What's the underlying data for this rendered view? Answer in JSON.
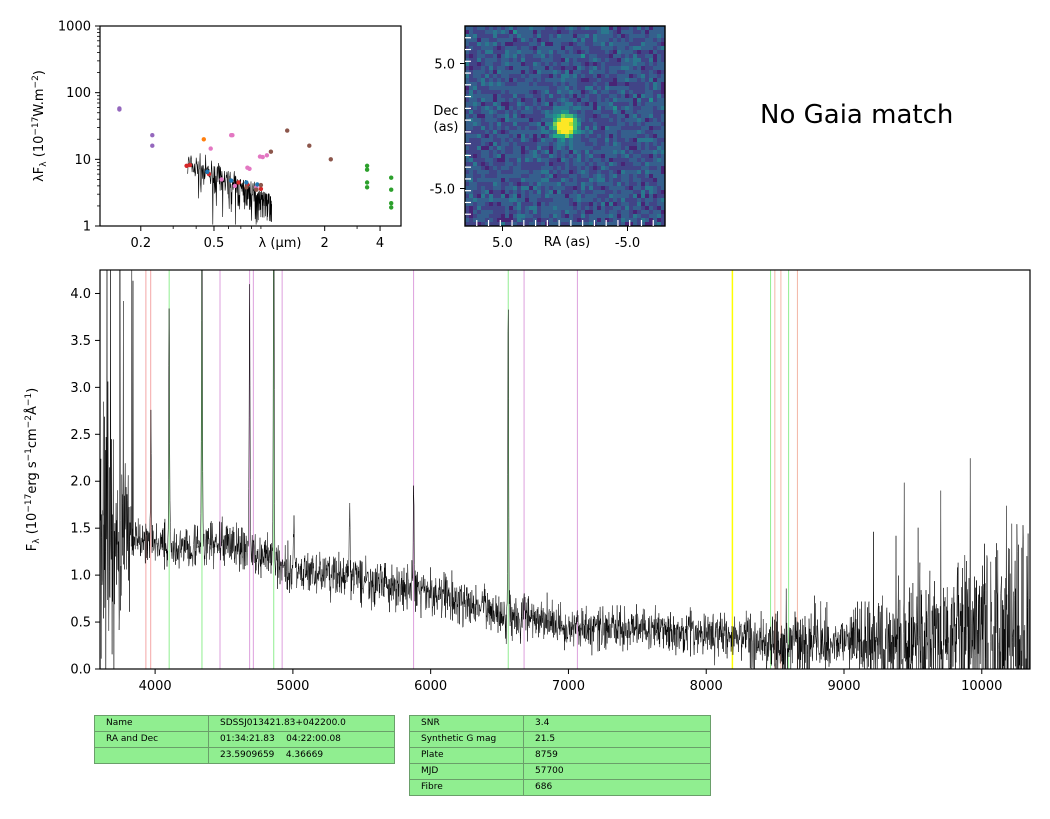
{
  "chart_data": [
    {
      "type": "scatter",
      "panel": "sed",
      "ylabel": "λF_λ (10^{-17}W.m^{-2})",
      "xlabel": "λ (μm)",
      "x_scale": "log",
      "y_scale": "log",
      "xlim": [
        0.12,
        5.2
      ],
      "ylim": [
        1,
        1000
      ],
      "ytick_labels": [
        "1",
        "10",
        "100",
        "1000"
      ],
      "xtick_labels": [
        "0.2",
        "0.5",
        "2",
        "4"
      ],
      "xtick_values": [
        0.2,
        0.5,
        2,
        4
      ],
      "ytick_values": [
        1,
        10,
        100,
        1000
      ],
      "series": [
        {
          "color": "#9467bd",
          "points": [
            [
              0.153,
              58
            ],
            [
              0.153,
              56
            ],
            [
              0.231,
              23
            ],
            [
              0.231,
              16
            ]
          ]
        },
        {
          "color": "#ff7f0e",
          "points": [
            [
              0.44,
              20
            ]
          ]
        },
        {
          "color": "#d62728",
          "points": [
            [
              0.355,
              8
            ],
            [
              0.37,
              8.2
            ],
            [
              0.76,
              4.2
            ],
            [
              0.9,
              3.6
            ],
            [
              0.68,
              4.5
            ],
            [
              0.47,
              6
            ]
          ]
        },
        {
          "color": "#e377c2",
          "points": [
            [
              0.48,
              14.5
            ],
            [
              0.62,
              23
            ],
            [
              0.63,
              23
            ],
            [
              0.76,
              7.5
            ],
            [
              0.78,
              7.2
            ],
            [
              0.89,
              11
            ],
            [
              0.92,
              10.8
            ],
            [
              0.97,
              11.5
            ],
            [
              0.55,
              5
            ],
            [
              0.65,
              4
            ],
            [
              0.85,
              3.8
            ]
          ]
        },
        {
          "color": "#1f77b4",
          "points": [
            [
              0.62,
              4.8
            ],
            [
              0.75,
              4.5
            ],
            [
              0.86,
              4.2
            ],
            [
              0.46,
              6.5
            ]
          ]
        },
        {
          "color": "#8c564b",
          "points": [
            [
              1.02,
              13
            ],
            [
              1.25,
              27
            ],
            [
              1.65,
              16
            ],
            [
              2.16,
              10
            ],
            [
              0.9,
              4.1
            ],
            [
              0.75,
              3.8
            ],
            [
              0.85,
              3.5
            ]
          ]
        },
        {
          "color": "#2ca02c",
          "points": [
            [
              3.4,
              8
            ],
            [
              3.4,
              7
            ],
            [
              3.4,
              4.5
            ],
            [
              3.4,
              3.8
            ],
            [
              4.6,
              5.3
            ],
            [
              4.6,
              3.5
            ],
            [
              4.6,
              2.2
            ],
            [
              4.6,
              1.9
            ]
          ]
        }
      ],
      "spectrum_color": "#000000"
    },
    {
      "type": "heatmap",
      "panel": "image",
      "xlabel": "RA (as)",
      "ylabel": "Dec\n(as)",
      "xtick_labels": [
        "5.0",
        "-5.0"
      ],
      "ytick_labels": [
        "5.0",
        "-5.0"
      ],
      "xlim": [
        8,
        -8
      ],
      "ylim": [
        -8,
        8
      ],
      "colormap": "viridis",
      "source_position": [
        0,
        0
      ]
    },
    {
      "type": "line",
      "panel": "spectrum",
      "ylabel": "F_λ (10^{-17}erg s^{-1}cm^{-2}Å^{-1})",
      "xlim": [
        3600,
        10350
      ],
      "ylim": [
        0,
        4.25
      ],
      "xtick_labels": [
        "4000",
        "5000",
        "6000",
        "7000",
        "8000",
        "9000",
        "10000"
      ],
      "xtick_values": [
        4000,
        5000,
        6000,
        7000,
        8000,
        9000,
        10000
      ],
      "ytick_labels": [
        "0.0",
        "0.5",
        "1.0",
        "1.5",
        "2.0",
        "2.5",
        "3.0",
        "3.5",
        "4.0"
      ],
      "ytick_values": [
        0,
        0.5,
        1,
        1.5,
        2,
        2.5,
        3,
        3.5,
        4
      ],
      "continuum_anchors": [
        [
          3600,
          1.6
        ],
        [
          3900,
          1.35
        ],
        [
          4200,
          1.3
        ],
        [
          4500,
          1.35
        ],
        [
          4800,
          1.2
        ],
        [
          5000,
          1.05
        ],
        [
          5500,
          0.95
        ],
        [
          6000,
          0.8
        ],
        [
          6500,
          0.6
        ],
        [
          7000,
          0.45
        ],
        [
          7500,
          0.42
        ],
        [
          8000,
          0.38
        ],
        [
          8500,
          0.3
        ],
        [
          9000,
          0.28
        ],
        [
          9500,
          0.3
        ],
        [
          10000,
          0.35
        ],
        [
          10350,
          0.4
        ]
      ],
      "emission_lines": [
        [
          3727,
          1.2
        ],
        [
          3970,
          2.5
        ],
        [
          4102,
          3.9
        ],
        [
          4340,
          5.0
        ],
        [
          4686,
          4.0
        ],
        [
          4861,
          5.5
        ],
        [
          5007,
          1.6
        ],
        [
          5411,
          1.8
        ],
        [
          5876,
          2.0
        ],
        [
          6563,
          3.9
        ],
        [
          6678,
          0.8
        ],
        [
          7065,
          0.7
        ]
      ],
      "noise_amplitude": 0.22,
      "vlines": [
        {
          "x": 3933,
          "color": "#f4a6a6"
        },
        {
          "x": 3968,
          "color": "#f4a6a6"
        },
        {
          "x": 4102,
          "color": "#90ee90"
        },
        {
          "x": 4340,
          "color": "#90ee90"
        },
        {
          "x": 4471,
          "color": "#dda0dd"
        },
        {
          "x": 4686,
          "color": "#dda0dd"
        },
        {
          "x": 4713,
          "color": "#dda0dd"
        },
        {
          "x": 4861,
          "color": "#90ee90"
        },
        {
          "x": 4922,
          "color": "#dda0dd"
        },
        {
          "x": 5876,
          "color": "#dda0dd"
        },
        {
          "x": 6563,
          "color": "#90ee90"
        },
        {
          "x": 6678,
          "color": "#dda0dd"
        },
        {
          "x": 7065,
          "color": "#dda0dd"
        },
        {
          "x": 8190,
          "color": "#ffff00"
        },
        {
          "x": 8467,
          "color": "#90ee90"
        },
        {
          "x": 8498,
          "color": "#f4b6a6"
        },
        {
          "x": 8542,
          "color": "#f4b6a6"
        },
        {
          "x": 8598,
          "color": "#90ee90"
        },
        {
          "x": 8662,
          "color": "#f4b6a6"
        }
      ]
    }
  ],
  "gaia_text": "No Gaia match",
  "info_table_left": {
    "rows": [
      [
        "Name",
        "SDSSJ013421.83+042200.0"
      ],
      [
        "RA and Dec",
        "01:34:21.83    04:22:00.08"
      ],
      [
        "",
        "23.5909659    4.36669"
      ]
    ]
  },
  "info_table_right": {
    "rows": [
      [
        "SNR",
        "3.4"
      ],
      [
        "Synthetic G mag",
        "21.5"
      ],
      [
        "Plate",
        "8759"
      ],
      [
        "MJD",
        "57700"
      ],
      [
        "Fibre",
        "686"
      ]
    ]
  }
}
